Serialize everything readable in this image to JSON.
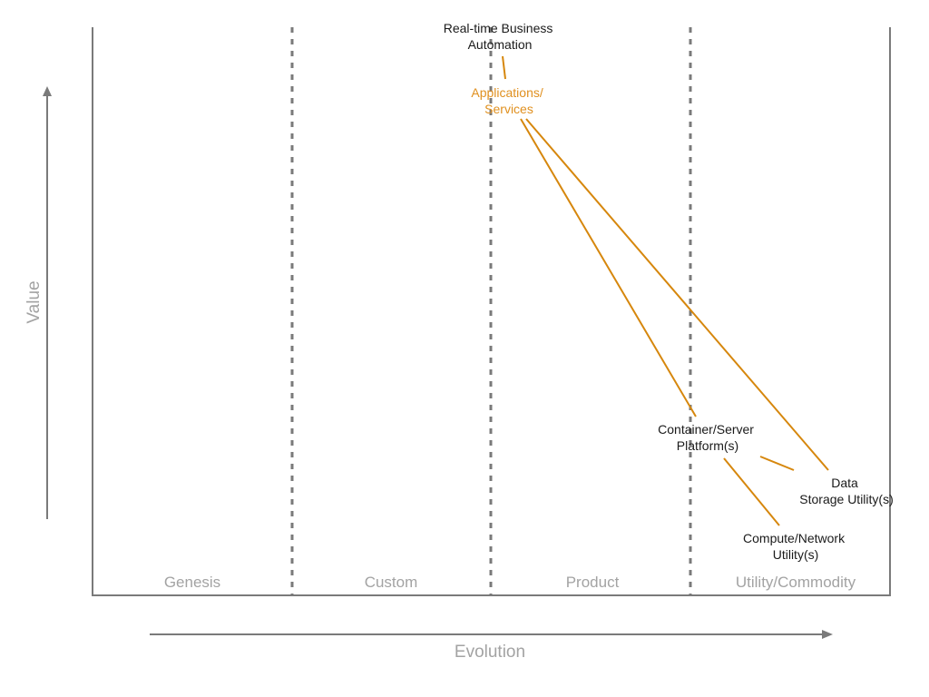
{
  "colors": {
    "link": "#d6870d",
    "accent_label": "#e0901f",
    "axis": "#7a7a7a",
    "muted_text": "#a3a3a3",
    "node_text": "#1a1a1a"
  },
  "axes": {
    "y_title": "Value",
    "x_title": "Evolution"
  },
  "stages": [
    "Genesis",
    "Custom",
    "Product",
    "Utility/Commodity"
  ],
  "nodes": {
    "realtime": {
      "line1": "Real-time Business",
      "line2": "Automation"
    },
    "applications": {
      "line1": "Applications/",
      "line2": "Services"
    },
    "container": {
      "line1": "Container/Server",
      "line2": "Platform(s)"
    },
    "data": {
      "line1": "Data",
      "line2": "Storage Utility(s)"
    },
    "compute": {
      "line1": "Compute/Network",
      "line2": "Utility(s)"
    }
  }
}
